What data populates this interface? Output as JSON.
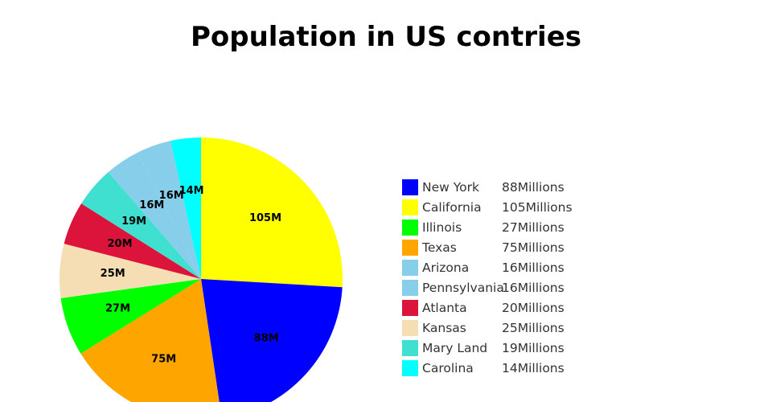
{
  "chart_data": {
    "type": "pie",
    "title": "Population in US contries",
    "slices": [
      {
        "name": "New York",
        "value": 88,
        "label": "88M",
        "legend_value": "88Millions",
        "color": "#0000ff"
      },
      {
        "name": "California",
        "value": 105,
        "label": "105M",
        "legend_value": "105Millions",
        "color": "#ffff00"
      },
      {
        "name": "Illinois",
        "value": 27,
        "label": "27M",
        "legend_value": "27Millions",
        "color": "#00ff00"
      },
      {
        "name": "Texas",
        "value": 75,
        "label": "75M",
        "legend_value": "75Millions",
        "color": "#ffa500"
      },
      {
        "name": "Arizona",
        "value": 16,
        "label": "16M",
        "legend_value": "16Millions",
        "color": "#87ceeb"
      },
      {
        "name": "Pennsylvania",
        "value": 16,
        "label": "16M",
        "legend_value": "16Millions",
        "color": "#87ceeb"
      },
      {
        "name": "Atlanta",
        "value": 20,
        "label": "20M",
        "legend_value": "20Millions",
        "color": "#dc143c"
      },
      {
        "name": "Kansas",
        "value": 25,
        "label": "25M",
        "legend_value": "25Millions",
        "color": "#f5deb3"
      },
      {
        "name": "Mary Land",
        "value": 19,
        "label": "19M",
        "legend_value": "19Millions",
        "color": "#40e0d0"
      },
      {
        "name": "Carolina",
        "value": 14,
        "label": "14M",
        "legend_value": "14Millions",
        "color": "#00ffff"
      }
    ],
    "draw_order": [
      "California",
      "New York",
      "Texas",
      "Illinois",
      "Kansas",
      "Atlanta",
      "Mary Land",
      "Pennsylvania",
      "Arizona",
      "Carolina"
    ],
    "start_angle": "12 o'clock",
    "direction": "clockwise",
    "legend_position": "right"
  }
}
